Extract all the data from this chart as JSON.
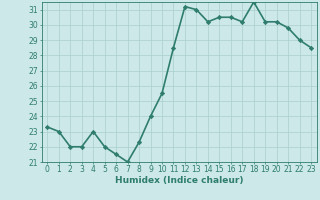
{
  "x": [
    0,
    1,
    2,
    3,
    4,
    5,
    6,
    7,
    8,
    9,
    10,
    11,
    12,
    13,
    14,
    15,
    16,
    17,
    18,
    19,
    20,
    21,
    22,
    23
  ],
  "y": [
    23.3,
    23.0,
    22.0,
    22.0,
    23.0,
    22.0,
    21.5,
    21.0,
    22.3,
    24.0,
    25.5,
    28.5,
    31.2,
    31.0,
    30.2,
    30.5,
    30.5,
    30.2,
    31.5,
    30.2,
    30.2,
    29.8,
    29.0,
    28.5
  ],
  "line_color": "#2e7d6e",
  "marker": "D",
  "marker_size": 2.2,
  "bg_color": "#cce8e8",
  "grid_color": "#aacece",
  "xlabel": "Humidex (Indice chaleur)",
  "ylim": [
    21,
    31.5
  ],
  "xlim": [
    -0.5,
    23.5
  ],
  "yticks": [
    21,
    22,
    23,
    24,
    25,
    26,
    27,
    28,
    29,
    30,
    31
  ],
  "xticks": [
    0,
    1,
    2,
    3,
    4,
    5,
    6,
    7,
    8,
    9,
    10,
    11,
    12,
    13,
    14,
    15,
    16,
    17,
    18,
    19,
    20,
    21,
    22,
    23
  ],
  "xlabel_fontsize": 6.5,
  "tick_fontsize": 5.5,
  "line_width": 1.2
}
